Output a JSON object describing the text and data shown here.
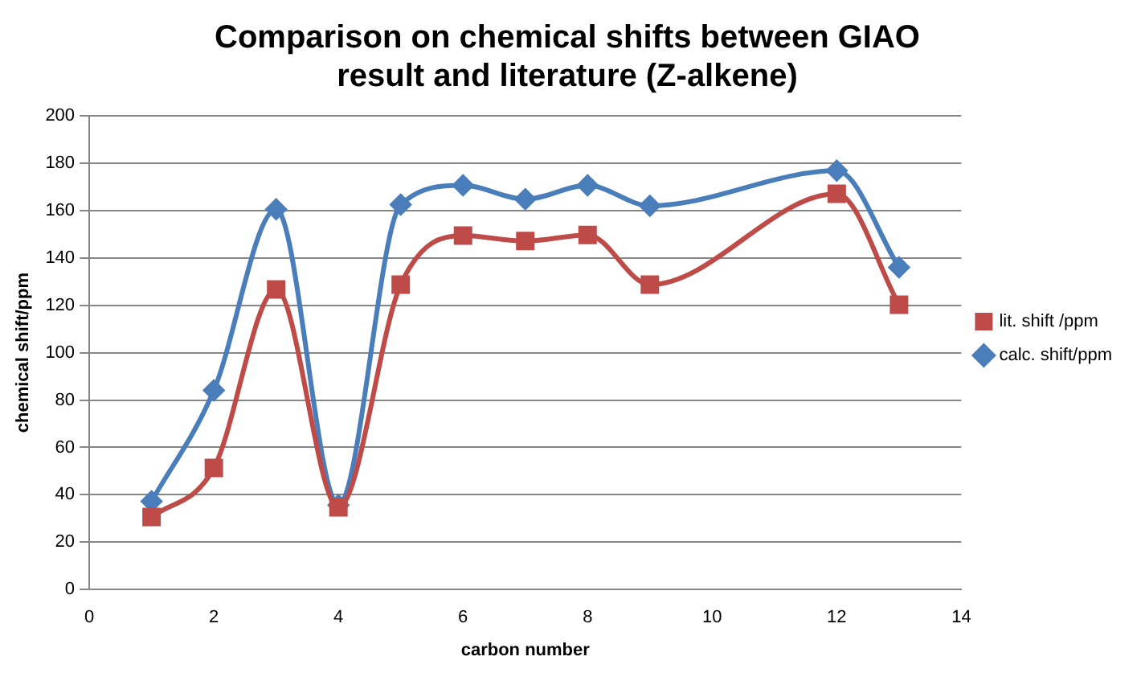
{
  "chart_data": {
    "type": "line",
    "title": "Comparison on chemical shifts between GIAO result and literature (Z-alkene)",
    "xlabel": "carbon number",
    "ylabel": "chemical shift/ppm",
    "x": [
      1,
      2,
      3,
      4,
      5,
      6,
      7,
      8,
      9,
      12,
      13
    ],
    "series": [
      {
        "name": "calc. shift/ppm",
        "color": "#4a7ebb",
        "marker": "diamond",
        "values": [
          37.2,
          84.1,
          160.5,
          35.6,
          162.5,
          170.6,
          164.8,
          170.6,
          162,
          176.8,
          136
        ]
      },
      {
        "name": "lit. shift /ppm",
        "color": "#be4b48",
        "marker": "square",
        "values": [
          30.6,
          51.3,
          126.7,
          34.7,
          128.7,
          149.4,
          147.1,
          149.7,
          128.7,
          167.1,
          120.2
        ]
      }
    ],
    "xlim": [
      0,
      14
    ],
    "xticks": [
      0,
      2,
      4,
      6,
      8,
      10,
      12,
      14
    ],
    "ylim": [
      0,
      200
    ],
    "yticks": [
      0,
      20,
      40,
      60,
      80,
      100,
      120,
      140,
      160,
      180,
      200
    ],
    "grid": "y",
    "legend": "right",
    "line_style": "solid"
  }
}
